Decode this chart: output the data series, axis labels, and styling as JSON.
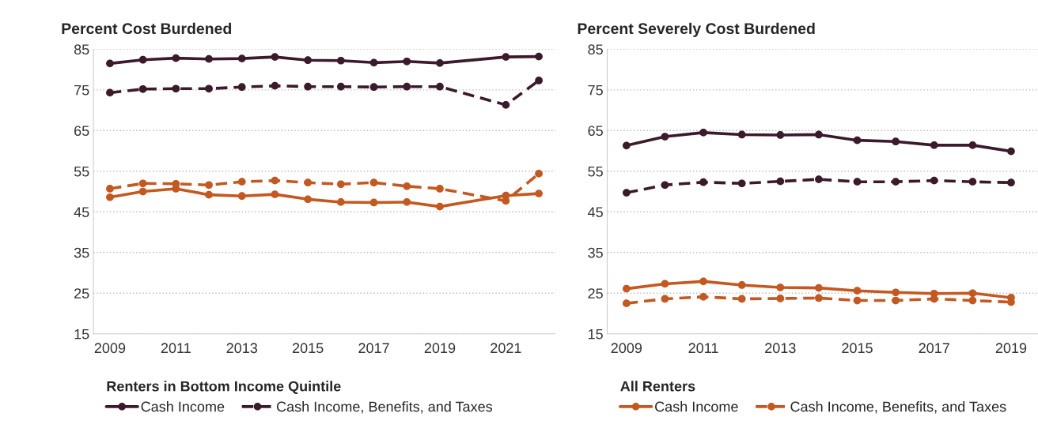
{
  "chart_data": [
    {
      "type": "line",
      "title": "Percent Cost Burdened",
      "categories": [
        "2009",
        null,
        "2011",
        null,
        "2013",
        null,
        "2015",
        null,
        "2017",
        null,
        "2019",
        null,
        "2021",
        null
      ],
      "ylim": [
        15,
        85
      ],
      "yticks": [
        15,
        25,
        35,
        45,
        55,
        65,
        75,
        85
      ],
      "grid": "y",
      "marker": "circle",
      "legend": "bottom",
      "legend_title": "Renters in Bottom Income Quintile",
      "series": [
        {
          "name": "Cash Income",
          "color": "#3a1a2b",
          "line_style": "solid",
          "values": [
            81.5,
            82.4,
            82.8,
            82.6,
            82.7,
            83.1,
            82.3,
            82.2,
            81.7,
            82.0,
            81.6,
            null,
            83.1,
            83.2
          ]
        },
        {
          "name": "Cash Income, Benefits, and Taxes",
          "color": "#3a1a2b",
          "line_style": "dashed",
          "values": [
            74.3,
            75.2,
            75.3,
            75.3,
            75.7,
            76.0,
            75.8,
            75.8,
            75.7,
            75.8,
            75.8,
            null,
            71.3,
            77.3
          ]
        },
        {
          "color": "#c4581f",
          "line_style": "solid",
          "values": [
            48.6,
            50.0,
            50.7,
            49.2,
            48.9,
            49.3,
            48.1,
            47.4,
            47.3,
            47.4,
            46.3,
            null,
            49.0,
            49.5
          ]
        },
        {
          "color": "#c4581f",
          "line_style": "dashed",
          "values": [
            50.7,
            52.0,
            51.9,
            51.6,
            52.4,
            52.7,
            52.2,
            51.8,
            52.2,
            51.3,
            50.7,
            null,
            47.7,
            54.4
          ]
        }
      ]
    },
    {
      "type": "line",
      "title": "Percent Severely Cost Burdened",
      "categories": [
        "2009",
        null,
        "2011",
        null,
        "2013",
        null,
        "2015",
        null,
        "2017",
        null,
        "2019"
      ],
      "ylim": [
        15,
        85
      ],
      "yticks": [
        15,
        25,
        35,
        45,
        55,
        65,
        75,
        85
      ],
      "grid": "y",
      "marker": "circle",
      "legend": "bottom",
      "legend_title": "All Renters",
      "series": [
        {
          "color": "#3a1a2b",
          "line_style": "solid",
          "values": [
            61.3,
            63.5,
            64.5,
            64.0,
            63.9,
            64.0,
            62.6,
            62.3,
            61.4,
            61.4,
            59.9
          ]
        },
        {
          "color": "#3a1a2b",
          "line_style": "dashed",
          "values": [
            49.7,
            51.6,
            52.3,
            52.0,
            52.5,
            53.0,
            52.4,
            52.4,
            52.7,
            52.4,
            52.2
          ]
        },
        {
          "name": "Cash Income",
          "color": "#c4581f",
          "line_style": "solid",
          "values": [
            26.1,
            27.3,
            27.9,
            27.0,
            26.4,
            26.3,
            25.6,
            25.2,
            24.9,
            25.0,
            23.9
          ]
        },
        {
          "name": "Cash Income, Benefits, and Taxes",
          "color": "#c4581f",
          "line_style": "dashed",
          "values": [
            22.5,
            23.6,
            24.1,
            23.6,
            23.7,
            23.8,
            23.2,
            23.2,
            23.6,
            23.2,
            22.8
          ]
        }
      ]
    }
  ]
}
